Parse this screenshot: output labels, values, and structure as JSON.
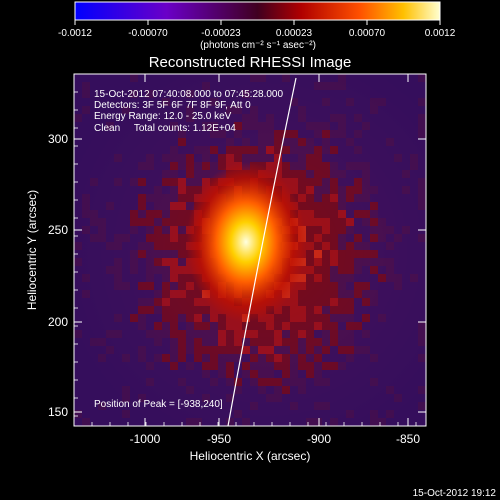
{
  "colorbar": {
    "ticks": [
      "-0.0012",
      "-0.00070",
      "-0.00023",
      "0.00023",
      "0.00070",
      "0.0012"
    ],
    "unit_label": "(photons cm⁻² s⁻¹ asec⁻²)"
  },
  "title": "Reconstructed RHESSI Image",
  "info": {
    "time_range": "15-Oct-2012 07:40:08.000 to 07:45:28.000",
    "detectors": "Detectors: 3F 5F 6F 7F 8F 9F, Att 0",
    "energy": "Energy Range: 12.0 - 25.0 keV",
    "clean": "Clean     Total counts: 1.12E+04"
  },
  "peak_label": "Position of Peak = [-938,240]",
  "axes": {
    "xlabel": "Heliocentric X (arcsec)",
    "ylabel": "Heliocentric Y (arcsec)",
    "xticks": [
      "-1000",
      "-950",
      "-900",
      "-850"
    ],
    "yticks": [
      "150",
      "200",
      "250",
      "300"
    ]
  },
  "footer_timestamp": "15-Oct-2012 19:12",
  "colors": {
    "background": "#000000",
    "limb_line": "#ffffff",
    "text": "#ffffff"
  }
}
